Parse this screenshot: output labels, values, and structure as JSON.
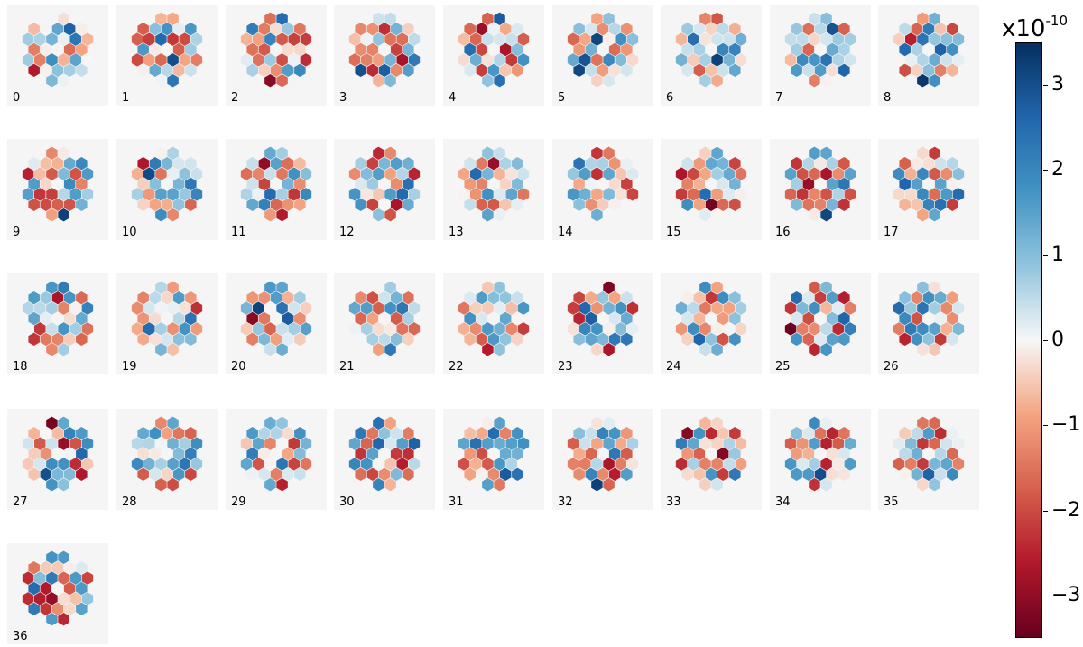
{
  "chart_data": {
    "type": "heatmap",
    "title": "",
    "description_panels": "37 hexagonal-segment maps indexed 0-36, 9 per row",
    "panel_labels": [
      "0",
      "1",
      "2",
      "3",
      "4",
      "5",
      "6",
      "7",
      "8",
      "9",
      "10",
      "11",
      "12",
      "13",
      "14",
      "15",
      "16",
      "17",
      "18",
      "19",
      "20",
      "21",
      "22",
      "23",
      "24",
      "25",
      "26",
      "27",
      "28",
      "29",
      "30",
      "31",
      "32",
      "33",
      "34",
      "35",
      "36"
    ],
    "colorbar": {
      "exponent_base": "x10",
      "exponent_power": "-10",
      "vmin": -3.5,
      "vmax": 3.5,
      "colormap": "RdBu",
      "ticks": [
        3,
        2,
        1,
        0,
        -1,
        -2,
        -3
      ],
      "tick_labels": [
        "3",
        "2",
        "1",
        "0",
        "−1",
        "−2",
        "−3"
      ]
    }
  }
}
